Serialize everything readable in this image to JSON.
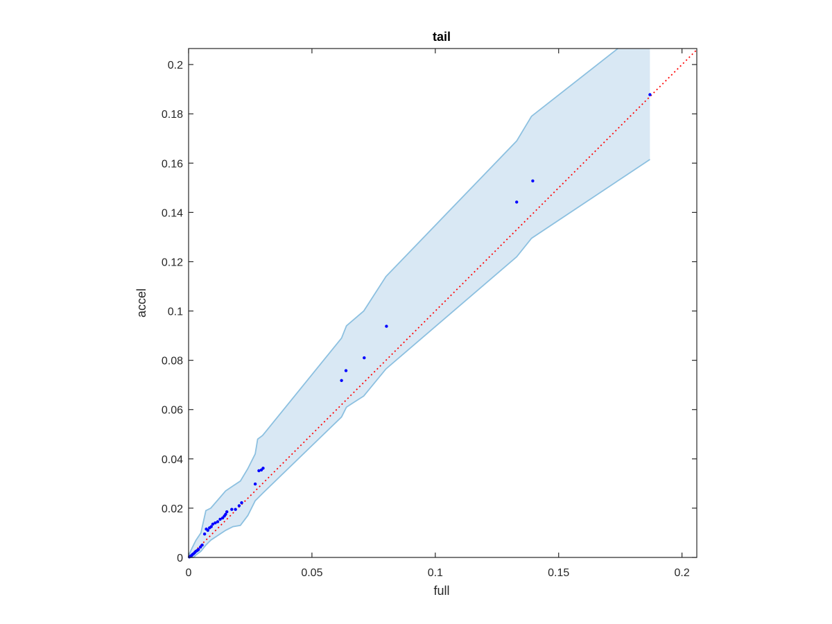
{
  "chart_data": {
    "type": "scatter",
    "title": "tail",
    "xlabel": "full",
    "ylabel": "accel",
    "xlim": [
      0,
      0.206
    ],
    "ylim": [
      0,
      0.2065
    ],
    "xticks": [
      0,
      0.05,
      0.1,
      0.15,
      0.2
    ],
    "xtick_labels": [
      "0",
      "0.05",
      "0.1",
      "0.15",
      "0.2"
    ],
    "yticks": [
      0,
      0.02,
      0.04,
      0.06,
      0.08,
      0.1,
      0.12,
      0.14,
      0.16,
      0.18,
      0.2
    ],
    "ytick_labels": [
      "0",
      "0.02",
      "0.04",
      "0.06",
      "0.08",
      "0.1",
      "0.12",
      "0.14",
      "0.16",
      "0.18",
      "0.2"
    ],
    "grid": false,
    "colors": {
      "points": "#0000ff",
      "band_fill": "#d9e8f4",
      "band_edge": "#8cc0e0",
      "diagonal": "#ff0000",
      "axes": "#262626"
    },
    "diagonal": {
      "from": [
        0,
        0
      ],
      "to": [
        0.206,
        0.206
      ],
      "style": "dotted"
    },
    "band": {
      "x": [
        0,
        0.001,
        0.002,
        0.003,
        0.005,
        0.007,
        0.009,
        0.012,
        0.015,
        0.018,
        0.021,
        0.024,
        0.027,
        0.028,
        0.03,
        0.062,
        0.064,
        0.071,
        0.08,
        0.133,
        0.139,
        0.187
      ],
      "upper": [
        0.0005,
        0.003,
        0.005,
        0.007,
        0.01,
        0.019,
        0.02,
        0.0235,
        0.027,
        0.029,
        0.031,
        0.036,
        0.042,
        0.048,
        0.0495,
        0.089,
        0.094,
        0.1,
        0.114,
        0.169,
        0.179,
        0.2065
      ],
      "lower": [
        0,
        0,
        0,
        0.001,
        0.0025,
        0.005,
        0.007,
        0.009,
        0.011,
        0.0125,
        0.013,
        0.017,
        0.023,
        0.024,
        0.026,
        0.057,
        0.061,
        0.0655,
        0.0765,
        0.122,
        0.1295,
        0.1615
      ],
      "upper_cap_x": 0.174
    },
    "x": [
      0.0003,
      0.0006,
      0.0009,
      0.0012,
      0.0016,
      0.002,
      0.0025,
      0.003,
      0.0035,
      0.004,
      0.0048,
      0.0055,
      0.0065,
      0.0072,
      0.0078,
      0.0085,
      0.0092,
      0.0098,
      0.0108,
      0.0118,
      0.0128,
      0.0138,
      0.0145,
      0.015,
      0.0155,
      0.0175,
      0.019,
      0.0205,
      0.0215,
      0.027,
      0.0285,
      0.0295,
      0.0302,
      0.062,
      0.0638,
      0.0712,
      0.0802,
      0.133,
      0.1395,
      0.187
    ],
    "y": [
      0.0002,
      0.0004,
      0.0006,
      0.0008,
      0.0012,
      0.0015,
      0.002,
      0.0025,
      0.0028,
      0.0032,
      0.0042,
      0.005,
      0.0095,
      0.0115,
      0.011,
      0.012,
      0.0125,
      0.0135,
      0.014,
      0.0145,
      0.0155,
      0.016,
      0.0168,
      0.0175,
      0.0185,
      0.0195,
      0.0195,
      0.021,
      0.0222,
      0.0298,
      0.0352,
      0.0355,
      0.0362,
      0.0718,
      0.0758,
      0.081,
      0.0938,
      0.1442,
      0.1528,
      0.1878
    ]
  }
}
